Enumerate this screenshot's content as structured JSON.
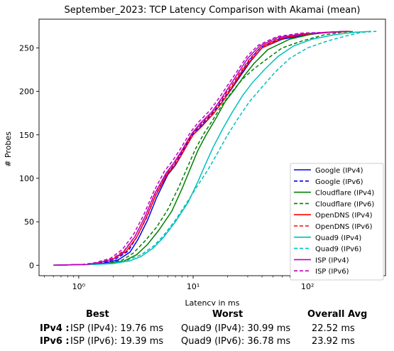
{
  "chart_data": {
    "type": "line",
    "title": "September_2023: TCP Latency Comparison with Akamai (mean)",
    "xlabel": "Latency in ms",
    "ylabel": "# Probes",
    "xscale": "log",
    "xlim": [
      0.45,
      480
    ],
    "ylim": [
      -12,
      283
    ],
    "xticks": [
      {
        "value": 1,
        "label": "10⁰"
      },
      {
        "value": 10,
        "label": "10¹"
      },
      {
        "value": 100,
        "label": "10²"
      }
    ],
    "yticks": [
      0,
      50,
      100,
      150,
      200,
      250
    ],
    "grid": false,
    "legend_position": "lower-right",
    "series": [
      {
        "name": "Google (IPv4)",
        "color": "#0000ee",
        "dash": "solid",
        "points": [
          [
            0.6,
            0
          ],
          [
            1.2,
            1
          ],
          [
            1.6,
            2
          ],
          [
            2.2,
            6
          ],
          [
            2.8,
            15
          ],
          [
            3.3,
            30
          ],
          [
            4.0,
            52
          ],
          [
            4.8,
            78
          ],
          [
            6.0,
            104
          ],
          [
            7.0,
            115
          ],
          [
            8.0,
            128
          ],
          [
            9.0,
            140
          ],
          [
            10.0,
            150
          ],
          [
            12.0,
            161
          ],
          [
            15.0,
            174
          ],
          [
            18.0,
            188
          ],
          [
            22.0,
            204
          ],
          [
            26.0,
            218
          ],
          [
            32.0,
            235
          ],
          [
            40.0,
            250
          ],
          [
            60.0,
            260
          ],
          [
            100.0,
            265
          ],
          [
            150.0,
            268
          ],
          [
            220.0,
            269
          ]
        ]
      },
      {
        "name": "Google (IPv6)",
        "color": "#0000ee",
        "dash": "dashed",
        "points": [
          [
            0.6,
            0
          ],
          [
            1.2,
            1
          ],
          [
            1.6,
            3
          ],
          [
            2.1,
            7
          ],
          [
            2.7,
            16
          ],
          [
            3.2,
            32
          ],
          [
            3.9,
            54
          ],
          [
            4.7,
            80
          ],
          [
            5.9,
            105
          ],
          [
            6.9,
            116
          ],
          [
            7.9,
            129
          ],
          [
            8.9,
            141
          ],
          [
            9.9,
            151
          ],
          [
            11.8,
            162
          ],
          [
            14.8,
            175
          ],
          [
            17.8,
            189
          ],
          [
            21.8,
            205
          ],
          [
            25.5,
            219
          ],
          [
            31.0,
            236
          ],
          [
            39.0,
            251
          ],
          [
            58.0,
            261
          ],
          [
            98.0,
            266
          ],
          [
            150.0,
            268
          ],
          [
            225.0,
            269
          ]
        ]
      },
      {
        "name": "Cloudflare (IPv4)",
        "color": "#008000",
        "dash": "solid",
        "points": [
          [
            0.6,
            0
          ],
          [
            1.3,
            1
          ],
          [
            1.8,
            2
          ],
          [
            2.5,
            5
          ],
          [
            3.2,
            12
          ],
          [
            4.0,
            24
          ],
          [
            5.0,
            40
          ],
          [
            6.5,
            62
          ],
          [
            8.0,
            88
          ],
          [
            9.5,
            112
          ],
          [
            11.0,
            132
          ],
          [
            13.0,
            150
          ],
          [
            16.0,
            170
          ],
          [
            19.0,
            188
          ],
          [
            23.0,
            202
          ],
          [
            28.0,
            218
          ],
          [
            34.0,
            232
          ],
          [
            45.0,
            248
          ],
          [
            70.0,
            260
          ],
          [
            110.0,
            266
          ],
          [
            160.0,
            268
          ],
          [
            220.0,
            269
          ]
        ]
      },
      {
        "name": "Cloudflare (IPv6)",
        "color": "#008000",
        "dash": "dashed",
        "points": [
          [
            0.6,
            0
          ],
          [
            1.3,
            1
          ],
          [
            1.8,
            2
          ],
          [
            2.4,
            6
          ],
          [
            3.0,
            14
          ],
          [
            3.8,
            28
          ],
          [
            4.8,
            44
          ],
          [
            6.0,
            64
          ],
          [
            7.5,
            90
          ],
          [
            9.0,
            114
          ],
          [
            10.5,
            134
          ],
          [
            12.5,
            152
          ],
          [
            15.0,
            168
          ],
          [
            18.0,
            185
          ],
          [
            22.0,
            200
          ],
          [
            27.0,
            214
          ],
          [
            34.0,
            226
          ],
          [
            45.0,
            238
          ],
          [
            60.0,
            250
          ],
          [
            90.0,
            258
          ],
          [
            140.0,
            265
          ],
          [
            200.0,
            268
          ],
          [
            260.0,
            269
          ]
        ]
      },
      {
        "name": "OpenDNS (IPv4)",
        "color": "#ff0000",
        "dash": "solid",
        "points": [
          [
            0.6,
            0
          ],
          [
            1.2,
            1
          ],
          [
            1.5,
            3
          ],
          [
            2.0,
            7
          ],
          [
            2.6,
            16
          ],
          [
            3.2,
            32
          ],
          [
            3.9,
            55
          ],
          [
            4.7,
            80
          ],
          [
            5.9,
            104
          ],
          [
            7.0,
            116
          ],
          [
            8.0,
            128
          ],
          [
            9.0,
            140
          ],
          [
            10.0,
            150
          ],
          [
            12.0,
            160
          ],
          [
            15.0,
            174
          ],
          [
            18.0,
            188
          ],
          [
            22.0,
            205
          ],
          [
            26.0,
            220
          ],
          [
            32.0,
            236
          ],
          [
            40.0,
            250
          ],
          [
            60.0,
            261
          ],
          [
            100.0,
            266
          ],
          [
            160.0,
            268
          ],
          [
            230.0,
            269
          ]
        ]
      },
      {
        "name": "OpenDNS (IPv6)",
        "color": "#ff0000",
        "dash": "dashed",
        "points": [
          [
            0.6,
            0
          ],
          [
            1.2,
            1
          ],
          [
            1.5,
            3
          ],
          [
            2.0,
            8
          ],
          [
            2.5,
            17
          ],
          [
            3.1,
            33
          ],
          [
            3.8,
            56
          ],
          [
            4.6,
            81
          ],
          [
            5.8,
            105
          ],
          [
            6.8,
            117
          ],
          [
            7.8,
            129
          ],
          [
            8.8,
            141
          ],
          [
            9.8,
            151
          ],
          [
            11.5,
            162
          ],
          [
            14.5,
            175
          ],
          [
            17.5,
            190
          ],
          [
            21.5,
            206
          ],
          [
            25.5,
            221
          ],
          [
            31.0,
            237
          ],
          [
            39.0,
            251
          ],
          [
            58.0,
            262
          ],
          [
            98.0,
            266
          ],
          [
            160.0,
            268
          ],
          [
            240.0,
            269
          ]
        ]
      },
      {
        "name": "Quad9 (IPv4)",
        "color": "#00bfbf",
        "dash": "solid",
        "points": [
          [
            0.6,
            0
          ],
          [
            1.4,
            1
          ],
          [
            2.0,
            2
          ],
          [
            2.8,
            5
          ],
          [
            3.5,
            10
          ],
          [
            4.5,
            20
          ],
          [
            5.5,
            32
          ],
          [
            7.0,
            50
          ],
          [
            9.0,
            72
          ],
          [
            11.0,
            96
          ],
          [
            13.0,
            118
          ],
          [
            15.0,
            136
          ],
          [
            18.0,
            156
          ],
          [
            22.0,
            176
          ],
          [
            27.0,
            195
          ],
          [
            33.0,
            210
          ],
          [
            42.0,
            225
          ],
          [
            55.0,
            240
          ],
          [
            75.0,
            252
          ],
          [
            110.0,
            260
          ],
          [
            170.0,
            265
          ],
          [
            260.0,
            268
          ],
          [
            360.0,
            269
          ]
        ]
      },
      {
        "name": "Quad9 (IPv6)",
        "color": "#00bfbf",
        "dash": "dashed",
        "points": [
          [
            0.6,
            0
          ],
          [
            1.4,
            1
          ],
          [
            2.0,
            2
          ],
          [
            2.7,
            6
          ],
          [
            3.5,
            12
          ],
          [
            4.5,
            22
          ],
          [
            5.5,
            34
          ],
          [
            7.0,
            52
          ],
          [
            9.0,
            74
          ],
          [
            11.0,
            92
          ],
          [
            13.5,
            110
          ],
          [
            16.5,
            130
          ],
          [
            20.0,
            150
          ],
          [
            25.0,
            170
          ],
          [
            31.0,
            188
          ],
          [
            40.0,
            205
          ],
          [
            52.0,
            222
          ],
          [
            70.0,
            238
          ],
          [
            100.0,
            250
          ],
          [
            150.0,
            258
          ],
          [
            220.0,
            264
          ],
          [
            300.0,
            268
          ],
          [
            400.0,
            269
          ]
        ]
      },
      {
        "name": "ISP (IPv4)",
        "color": "#bf00bf",
        "dash": "solid",
        "points": [
          [
            0.6,
            0
          ],
          [
            1.2,
            1
          ],
          [
            1.5,
            3
          ],
          [
            2.0,
            7
          ],
          [
            2.5,
            16
          ],
          [
            3.1,
            33
          ],
          [
            3.8,
            56
          ],
          [
            4.6,
            82
          ],
          [
            5.8,
            106
          ],
          [
            6.8,
            118
          ],
          [
            7.8,
            130
          ],
          [
            8.8,
            142
          ],
          [
            9.8,
            152
          ],
          [
            11.5,
            163
          ],
          [
            14.5,
            176
          ],
          [
            17.5,
            191
          ],
          [
            21.0,
            207
          ],
          [
            25.0,
            222
          ],
          [
            30.0,
            238
          ],
          [
            38.0,
            252
          ],
          [
            55.0,
            262
          ],
          [
            90.0,
            266
          ],
          [
            150.0,
            268
          ],
          [
            220.0,
            269
          ]
        ]
      },
      {
        "name": "ISP (IPv6)",
        "color": "#bf00bf",
        "dash": "dashed",
        "points": [
          [
            0.6,
            0
          ],
          [
            1.1,
            1
          ],
          [
            1.4,
            3
          ],
          [
            1.9,
            8
          ],
          [
            2.4,
            18
          ],
          [
            3.0,
            35
          ],
          [
            3.7,
            58
          ],
          [
            4.5,
            84
          ],
          [
            5.6,
            108
          ],
          [
            6.6,
            120
          ],
          [
            7.6,
            132
          ],
          [
            8.6,
            144
          ],
          [
            9.6,
            154
          ],
          [
            11.2,
            165
          ],
          [
            14.0,
            178
          ],
          [
            17.0,
            193
          ],
          [
            20.5,
            209
          ],
          [
            24.5,
            224
          ],
          [
            29.5,
            240
          ],
          [
            37.0,
            253
          ],
          [
            54.0,
            263
          ],
          [
            88.0,
            267
          ],
          [
            150.0,
            268
          ],
          [
            210.0,
            269
          ]
        ]
      }
    ]
  },
  "summary": {
    "headers": {
      "best": "Best",
      "worst": "Worst",
      "avg": "Overall Avg"
    },
    "rows": [
      {
        "label": "IPv4 :",
        "best": "ISP (IPv4): 19.76 ms",
        "worst": "Quad9 (IPv4): 30.99 ms",
        "avg": "22.52 ms"
      },
      {
        "label": "IPv6 :",
        "best": "ISP (IPv6): 19.39 ms",
        "worst": "Quad9 (IPv6): 36.78 ms",
        "avg": "23.92 ms"
      }
    ]
  }
}
